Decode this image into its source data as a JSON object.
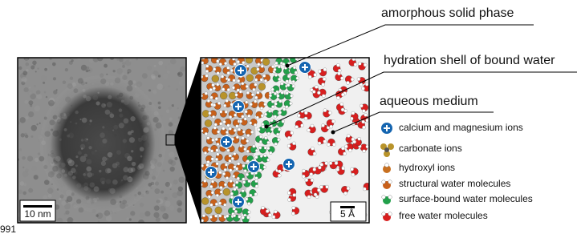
{
  "labels": [
    "amorphous solid phase",
    "hydration shell of bound water",
    "aqueous medium"
  ],
  "scale_bars": {
    "left": "10 nm",
    "right": "5 Å"
  },
  "legend": [
    "calcium and magnesium ions",
    "carbonate ions",
    "hydroxyl ions",
    "structural water molecules",
    "surface-bound water molecules",
    "free water molecules"
  ],
  "fragment": "991"
}
